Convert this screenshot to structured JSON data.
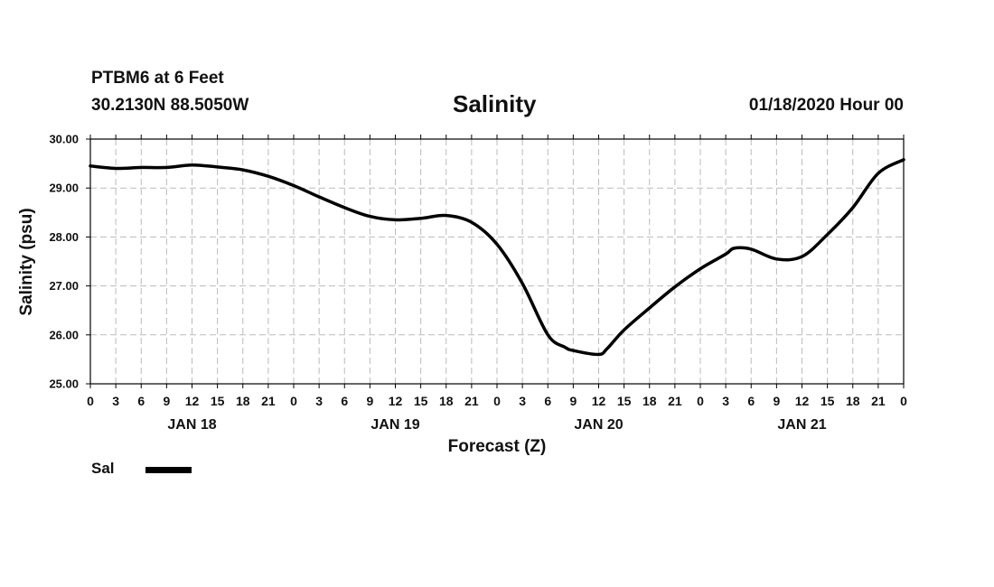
{
  "header": {
    "station": "PTBM6 at 6 Feet",
    "location": "30.2130N 88.5050W",
    "issued": "01/18/2020 Hour 00"
  },
  "legend": {
    "label": "Sal",
    "color": "#000000"
  },
  "colors": {
    "line": "#000000",
    "grid": "#bbbbbb",
    "axis": "#000000"
  },
  "chart_data": {
    "type": "line",
    "title": "Salinity",
    "xlabel": "Forecast (Z)",
    "ylabel": "Salinity (psu)",
    "ylim": [
      25.0,
      30.0
    ],
    "yticks": [
      "25.00",
      "26.00",
      "27.00",
      "28.00",
      "29.00",
      "30.00"
    ],
    "xlim": [
      0,
      96
    ],
    "xtick_labels": [
      "0",
      "3",
      "6",
      "9",
      "12",
      "15",
      "18",
      "21",
      "0",
      "3",
      "6",
      "9",
      "12",
      "15",
      "18",
      "21",
      "0",
      "3",
      "6",
      "9",
      "12",
      "15",
      "18",
      "21",
      "0",
      "3",
      "6",
      "9",
      "12",
      "15",
      "18",
      "21",
      "0"
    ],
    "day_labels": [
      {
        "label": "JAN 18",
        "hour": 12
      },
      {
        "label": "JAN 19",
        "hour": 36
      },
      {
        "label": "JAN 20",
        "hour": 60
      },
      {
        "label": "JAN 21",
        "hour": 84
      }
    ],
    "grid": true,
    "series": [
      {
        "name": "Sal",
        "x": [
          0,
          3,
          6,
          9,
          12,
          15,
          18,
          21,
          24,
          27,
          30,
          33,
          36,
          39,
          42,
          45,
          48,
          51,
          54,
          56,
          57,
          60,
          61,
          63,
          66,
          69,
          72,
          75,
          76,
          78,
          81,
          84,
          87,
          90,
          93,
          96
        ],
        "y": [
          29.45,
          29.4,
          29.42,
          29.42,
          29.47,
          29.43,
          29.37,
          29.24,
          29.05,
          28.82,
          28.6,
          28.42,
          28.35,
          28.38,
          28.44,
          28.3,
          27.85,
          27.05,
          26.0,
          25.75,
          25.68,
          25.6,
          25.72,
          26.1,
          26.55,
          26.98,
          27.35,
          27.65,
          27.77,
          27.75,
          27.55,
          27.6,
          28.05,
          28.6,
          29.3,
          29.58
        ]
      }
    ]
  }
}
